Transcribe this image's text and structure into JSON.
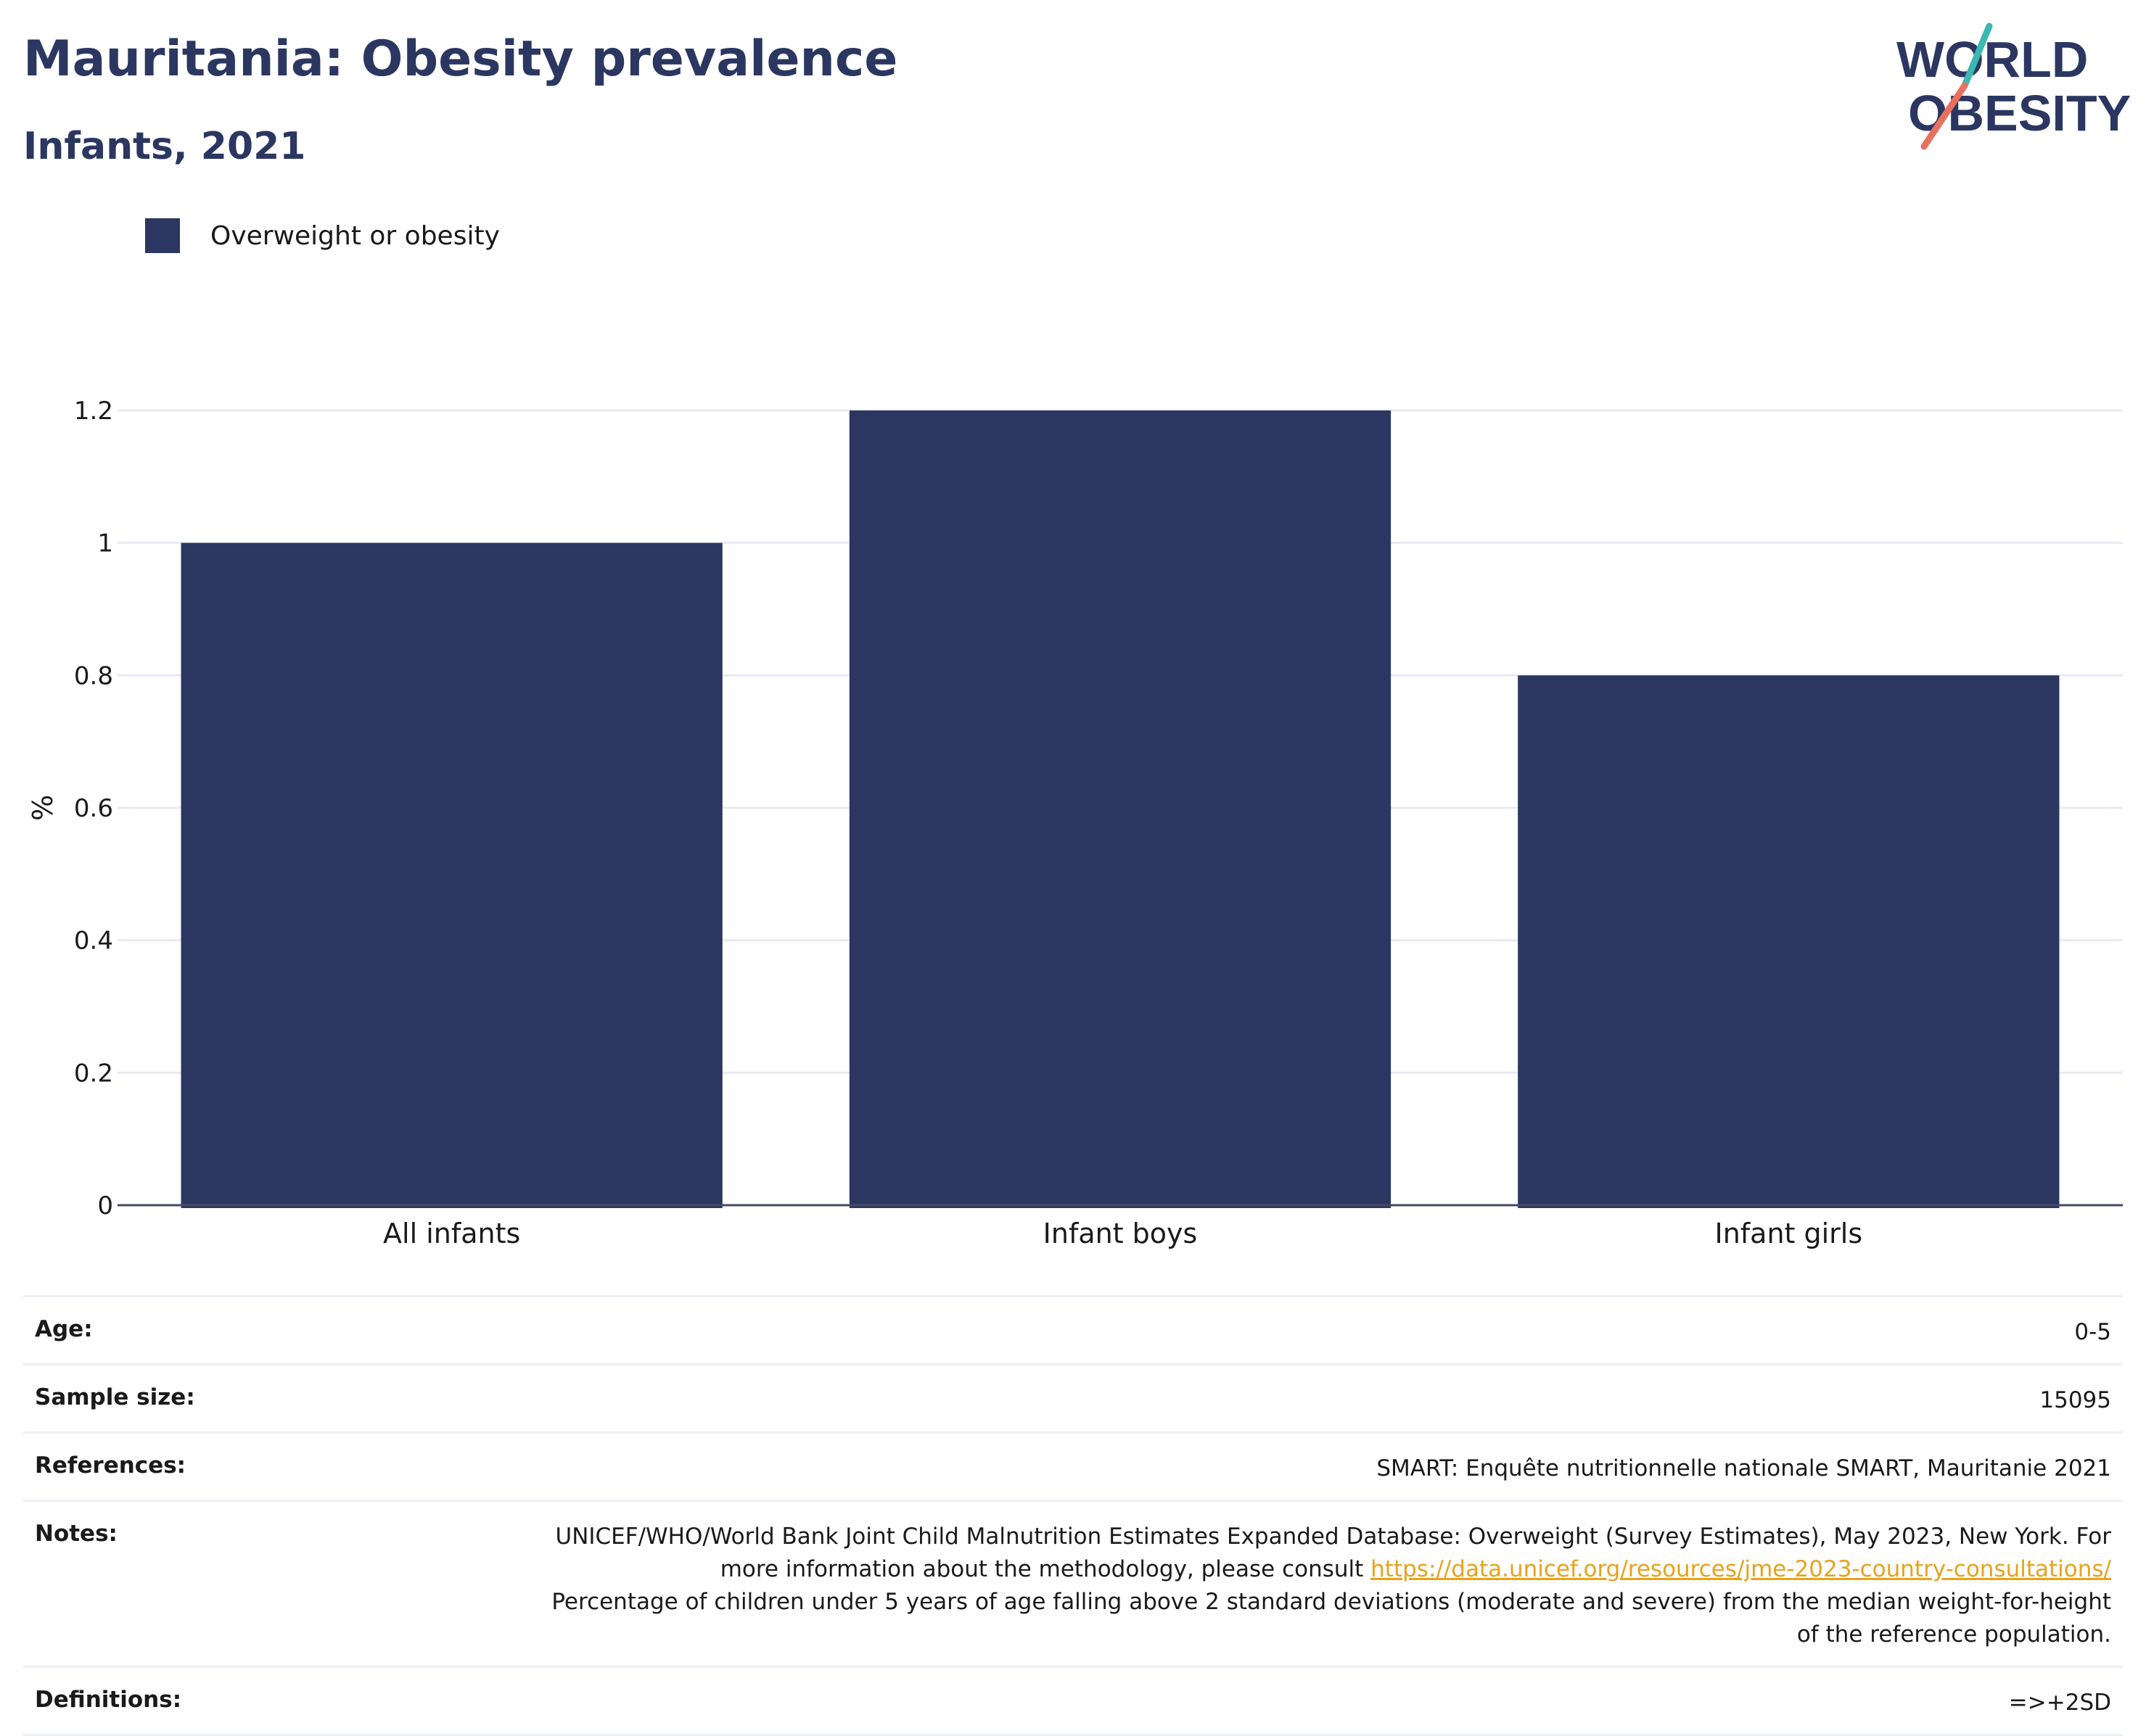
{
  "header": {
    "title": "Mauritania: Obesity prevalence",
    "subtitle": "Infants, 2021",
    "logo_line1": "WORLD",
    "logo_line2": "OBESITY"
  },
  "legend": {
    "label": "Overweight or obesity",
    "color": "#2b3761"
  },
  "chart_data": {
    "type": "bar",
    "title": "Mauritania: Obesity prevalence",
    "subtitle": "Infants, 2021",
    "categories": [
      "All infants",
      "Infant boys",
      "Infant girls"
    ],
    "series": [
      {
        "name": "Overweight or obesity",
        "values": [
          1.0,
          1.2,
          0.8
        ],
        "color": "#2b3761"
      }
    ],
    "xlabel": "",
    "ylabel": "%",
    "ylim": [
      0,
      1.2
    ],
    "yticks": [
      0,
      0.2,
      0.4,
      0.6,
      0.8,
      1,
      1.2
    ],
    "ytick_labels": [
      "0",
      "0.2",
      "0.4",
      "0.6",
      "0.8",
      "1",
      "1.2"
    ],
    "grid": true,
    "legend_position": "top-left"
  },
  "meta": {
    "age_label": "Age:",
    "age_value": "0-5",
    "sample_label": "Sample size:",
    "sample_value": "15095",
    "references_label": "References:",
    "references_value": "SMART: Enquête nutritionnelle nationale SMART, Mauritanie 2021",
    "notes_label": "Notes:",
    "notes_text_1": "UNICEF/WHO/World Bank Joint Child Malnutrition Estimates Expanded Database: Overweight (Survey Estimates), May 2023, New York. For more information about the methodology, please consult ",
    "notes_link": "https://data.unicef.org/resources/jme-2023-country-consultations/",
    "notes_text_2": "Percentage of children under 5 years of age falling above 2 standard deviations (moderate and severe) from the median weight-for-height of the reference population.",
    "definitions_label": "Definitions:",
    "definitions_value": "=>+2SD"
  }
}
